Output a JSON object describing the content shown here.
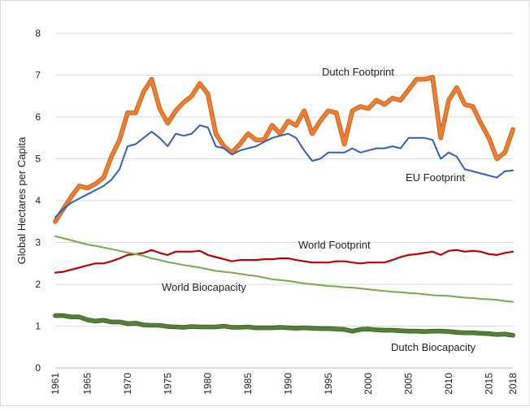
{
  "chart_data": {
    "type": "line",
    "title": "",
    "xlabel": "",
    "ylabel": "Global Hectares per Capita",
    "xlim": [
      1961,
      2018
    ],
    "ylim": [
      0,
      8
    ],
    "y_ticks": [
      "0",
      "1",
      "2",
      "3",
      "4",
      "5",
      "6",
      "7",
      "8"
    ],
    "x_ticks": [
      "1961",
      "1965",
      "1970",
      "1975",
      "1980",
      "1985",
      "1990",
      "1995",
      "2000",
      "2005",
      "2010",
      "2015",
      "2018"
    ],
    "grid": "horizontal",
    "legend": "inline labels",
    "x": [
      1961,
      1962,
      1963,
      1964,
      1965,
      1966,
      1967,
      1968,
      1969,
      1970,
      1971,
      1972,
      1973,
      1974,
      1975,
      1976,
      1977,
      1978,
      1979,
      1980,
      1981,
      1982,
      1983,
      1984,
      1985,
      1986,
      1987,
      1988,
      1989,
      1990,
      1991,
      1992,
      1993,
      1994,
      1995,
      1996,
      1997,
      1998,
      1999,
      2000,
      2001,
      2002,
      2003,
      2004,
      2005,
      2006,
      2007,
      2008,
      2009,
      2010,
      2011,
      2012,
      2013,
      2014,
      2015,
      2016,
      2017,
      2018
    ],
    "series": [
      {
        "name": "Dutch Footprint",
        "color": "#ed7d31",
        "halo": "#c55a11",
        "width": 4,
        "values": [
          3.5,
          3.8,
          4.1,
          4.35,
          4.3,
          4.4,
          4.55,
          5.05,
          5.45,
          6.1,
          6.1,
          6.6,
          6.9,
          6.2,
          5.85,
          6.15,
          6.35,
          6.5,
          6.8,
          6.55,
          5.6,
          5.3,
          5.15,
          5.35,
          5.6,
          5.45,
          5.45,
          5.8,
          5.6,
          5.9,
          5.8,
          6.15,
          5.6,
          5.9,
          6.15,
          6.1,
          5.35,
          6.15,
          6.25,
          6.2,
          6.4,
          6.3,
          6.45,
          6.4,
          6.65,
          6.9,
          6.9,
          6.95,
          5.5,
          6.4,
          6.7,
          6.3,
          6.25,
          5.85,
          5.5,
          5.0,
          5.15,
          5.7
        ]
      },
      {
        "name": "EU Footprint",
        "color": "#2f5fbf",
        "width": 2,
        "values": [
          3.6,
          3.8,
          3.95,
          4.05,
          4.15,
          4.25,
          4.35,
          4.5,
          4.75,
          5.3,
          5.35,
          5.5,
          5.65,
          5.5,
          5.3,
          5.6,
          5.55,
          5.6,
          5.8,
          5.75,
          5.3,
          5.25,
          5.1,
          5.2,
          5.25,
          5.3,
          5.4,
          5.5,
          5.55,
          5.6,
          5.5,
          5.2,
          4.95,
          5.0,
          5.15,
          5.15,
          5.15,
          5.25,
          5.15,
          5.2,
          5.25,
          5.25,
          5.3,
          5.25,
          5.5,
          5.5,
          5.5,
          5.45,
          5.0,
          5.15,
          5.05,
          4.75,
          4.7,
          4.65,
          4.6,
          4.55,
          4.7,
          4.72
        ]
      },
      {
        "name": "World Footprint",
        "color": "#c00000",
        "width": 2.2,
        "values": [
          2.28,
          2.3,
          2.35,
          2.4,
          2.45,
          2.5,
          2.5,
          2.55,
          2.62,
          2.7,
          2.72,
          2.75,
          2.82,
          2.75,
          2.7,
          2.78,
          2.78,
          2.78,
          2.8,
          2.7,
          2.65,
          2.6,
          2.55,
          2.58,
          2.58,
          2.58,
          2.6,
          2.6,
          2.62,
          2.62,
          2.58,
          2.55,
          2.52,
          2.52,
          2.52,
          2.55,
          2.55,
          2.52,
          2.5,
          2.52,
          2.52,
          2.52,
          2.58,
          2.65,
          2.7,
          2.72,
          2.75,
          2.78,
          2.7,
          2.8,
          2.82,
          2.78,
          2.8,
          2.78,
          2.72,
          2.7,
          2.75,
          2.78
        ]
      },
      {
        "name": "World Biocapacity",
        "color": "#70ad47",
        "width": 2,
        "values": [
          3.15,
          3.1,
          3.05,
          3.0,
          2.95,
          2.92,
          2.88,
          2.84,
          2.8,
          2.76,
          2.72,
          2.68,
          2.62,
          2.58,
          2.53,
          2.5,
          2.46,
          2.43,
          2.4,
          2.36,
          2.32,
          2.3,
          2.28,
          2.25,
          2.22,
          2.2,
          2.16,
          2.12,
          2.1,
          2.08,
          2.05,
          2.02,
          2.0,
          1.98,
          1.96,
          1.95,
          1.93,
          1.92,
          1.9,
          1.88,
          1.86,
          1.84,
          1.82,
          1.81,
          1.79,
          1.78,
          1.76,
          1.74,
          1.73,
          1.72,
          1.7,
          1.68,
          1.67,
          1.65,
          1.64,
          1.63,
          1.6,
          1.58
        ]
      },
      {
        "name": "Dutch Biocapacity",
        "color": "#548235",
        "halo": "#375623",
        "width": 4,
        "values": [
          1.25,
          1.25,
          1.22,
          1.22,
          1.15,
          1.12,
          1.14,
          1.1,
          1.1,
          1.06,
          1.07,
          1.03,
          1.02,
          1.02,
          0.99,
          0.98,
          0.97,
          0.99,
          0.98,
          0.98,
          0.98,
          1.0,
          0.97,
          0.97,
          0.98,
          0.96,
          0.96,
          0.96,
          0.97,
          0.96,
          0.95,
          0.96,
          0.95,
          0.94,
          0.94,
          0.93,
          0.92,
          0.88,
          0.92,
          0.93,
          0.91,
          0.9,
          0.9,
          0.89,
          0.88,
          0.88,
          0.87,
          0.88,
          0.88,
          0.87,
          0.85,
          0.84,
          0.84,
          0.83,
          0.82,
          0.8,
          0.81,
          0.78
        ]
      }
    ],
    "annotations": [
      {
        "text": "Dutch Footprint",
        "series": "Dutch Footprint"
      },
      {
        "text": "EU Footprint",
        "series": "EU Footprint"
      },
      {
        "text": "World Footprint",
        "series": "World Footprint"
      },
      {
        "text": "World Biocapacity",
        "series": "World Biocapacity"
      },
      {
        "text": "Dutch Biocapacity",
        "series": "Dutch Biocapacity"
      }
    ]
  }
}
